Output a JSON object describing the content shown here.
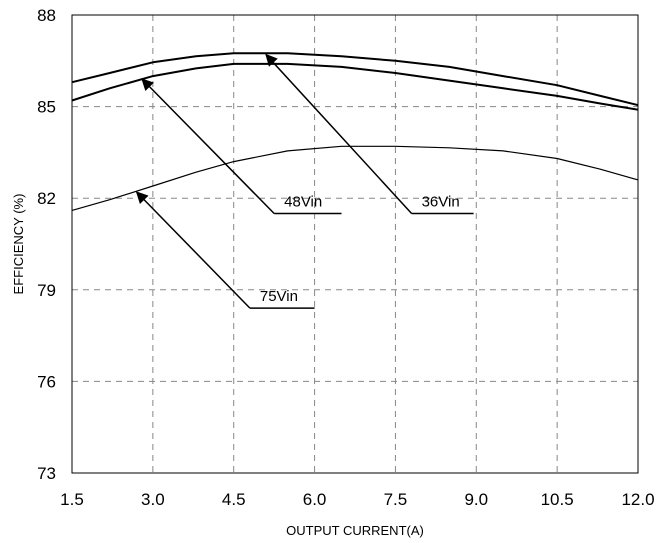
{
  "chart_data": {
    "type": "line",
    "xlabel": "OUTPUT CURRENT(A)",
    "ylabel": "EFFICIENCY (%)",
    "xlim": [
      1.5,
      12.0
    ],
    "ylim": [
      73,
      88
    ],
    "x_ticks": [
      "1.5",
      "3.0",
      "4.5",
      "6.0",
      "7.5",
      "9.0",
      "10.5",
      "12.0"
    ],
    "y_ticks": [
      "73",
      "76",
      "79",
      "82",
      "85",
      "88"
    ],
    "grid": true,
    "series": [
      {
        "name": "36Vin",
        "x": [
          1.5,
          2.2,
          3.0,
          3.8,
          4.5,
          5.5,
          6.5,
          7.5,
          8.5,
          9.5,
          10.5,
          11.3,
          12.0
        ],
        "y": [
          85.8,
          86.1,
          86.45,
          86.65,
          86.75,
          86.75,
          86.65,
          86.5,
          86.3,
          86.0,
          85.7,
          85.35,
          85.05
        ]
      },
      {
        "name": "48Vin",
        "x": [
          1.5,
          2.2,
          3.0,
          3.8,
          4.5,
          5.5,
          6.5,
          7.5,
          8.5,
          9.5,
          10.5,
          11.3,
          12.0
        ],
        "y": [
          85.2,
          85.6,
          86.0,
          86.25,
          86.4,
          86.4,
          86.3,
          86.1,
          85.85,
          85.6,
          85.35,
          85.1,
          84.9
        ]
      },
      {
        "name": "75Vin",
        "x": [
          1.5,
          2.2,
          3.0,
          3.8,
          4.5,
          5.5,
          6.5,
          7.5,
          8.5,
          9.5,
          10.5,
          11.3,
          12.0
        ],
        "y": [
          81.6,
          81.95,
          82.4,
          82.85,
          83.2,
          83.55,
          83.7,
          83.7,
          83.65,
          83.55,
          83.3,
          82.95,
          82.6
        ]
      }
    ],
    "annotations": [
      {
        "text": "36Vin",
        "series": "36Vin",
        "arrow_to": [
          5.1,
          86.7
        ],
        "label_at": [
          7.8,
          81.5
        ],
        "line_to": 8.95
      },
      {
        "text": "48Vin",
        "series": "48Vin",
        "arrow_to": [
          2.8,
          85.9
        ],
        "label_at": [
          5.25,
          81.5
        ],
        "line_to": 6.5
      },
      {
        "text": "75Vin",
        "series": "75Vin",
        "arrow_to": [
          2.7,
          82.2
        ],
        "label_at": [
          4.8,
          78.4
        ],
        "line_to": 6.0
      }
    ]
  }
}
